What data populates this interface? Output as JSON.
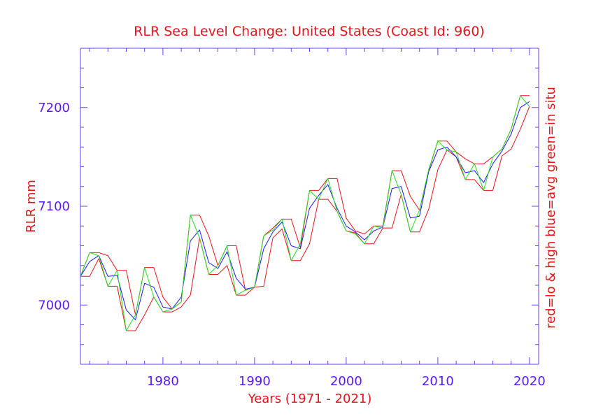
{
  "chart_data": {
    "type": "line",
    "title": "RLR Sea Level Change: United States (Coast Id: 960)",
    "xlabel": "Years (1971 - 2021)",
    "ylabel": "RLR mm",
    "ylabel_right": "red=lo & high  blue=avg  green=in situ",
    "xlim": [
      1971,
      2021
    ],
    "ylim": [
      6940,
      7260
    ],
    "xticks": [
      1980,
      1990,
      2000,
      2010,
      2020
    ],
    "xtick_labels": [
      "1980",
      "1990",
      "2000",
      "2010",
      "2020"
    ],
    "yticks": [
      7000,
      7100,
      7200
    ],
    "ytick_labels": [
      "7000",
      "7100",
      "7200"
    ],
    "x": [
      1971,
      1972,
      1973,
      1974,
      1975,
      1976,
      1977,
      1978,
      1979,
      1980,
      1981,
      1982,
      1983,
      1984,
      1985,
      1986,
      1987,
      1988,
      1989,
      1990,
      1991,
      1992,
      1993,
      1994,
      1995,
      1996,
      1997,
      1998,
      1999,
      2000,
      2001,
      2002,
      2003,
      2004,
      2005,
      2006,
      2007,
      2008,
      2009,
      2010,
      2011,
      2012,
      2013,
      2014,
      2015,
      2016,
      2017,
      2018,
      2019,
      2020
    ],
    "series": [
      {
        "name": "high",
        "color": "#e8141b",
        "values": [
          7029,
          7053,
          7053,
          7050,
          7035,
          7035,
          6990,
          7038,
          7038,
          7008,
          6996,
          7003,
          7091,
          7091,
          7070,
          7040,
          7060,
          7060,
          7015,
          7018,
          7070,
          7078,
          7087,
          7087,
          7058,
          7116,
          7116,
          7128,
          7128,
          7088,
          7075,
          7072,
          7080,
          7080,
          7136,
          7136,
          7110,
          7096,
          7136,
          7166,
          7166,
          7155,
          7148,
          7143,
          7143,
          7150,
          7158,
          7178,
          7212,
          7212
        ]
      },
      {
        "name": "low",
        "color": "#e8141b",
        "values": [
          7029,
          7029,
          7047,
          7019,
          7019,
          6974,
          6974,
          6990,
          7008,
          6993,
          6993,
          6998,
          7010,
          7068,
          7031,
          7031,
          7040,
          7010,
          7010,
          7018,
          7019,
          7068,
          7077,
          7045,
          7045,
          7062,
          7107,
          7107,
          7095,
          7075,
          7073,
          7062,
          7062,
          7078,
          7078,
          7112,
          7074,
          7074,
          7097,
          7137,
          7157,
          7150,
          7127,
          7127,
          7116,
          7116,
          7151,
          7158,
          7178,
          7201
        ]
      },
      {
        "name": "avg",
        "color": "#1a1aff",
        "values": [
          7029,
          7044,
          7050,
          7029,
          7030,
          6995,
          6985,
          7022,
          7018,
          6998,
          6996,
          7008,
          7065,
          7076,
          7043,
          7037,
          7054,
          7027,
          7016,
          7018,
          7057,
          7074,
          7084,
          7060,
          7057,
          7098,
          7111,
          7122,
          7098,
          7080,
          7074,
          7066,
          7075,
          7079,
          7118,
          7120,
          7088,
          7090,
          7135,
          7157,
          7160,
          7150,
          7134,
          7136,
          7124,
          7143,
          7156,
          7173,
          7200,
          7206
        ]
      },
      {
        "name": "in situ",
        "color": "#22dd22",
        "values": [
          7029,
          7053,
          7050,
          7019,
          7035,
          6974,
          6990,
          7038,
          7008,
          6993,
          6996,
          7003,
          7091,
          7068,
          7031,
          7040,
          7060,
          7010,
          7015,
          7018,
          7070,
          7076,
          7087,
          7045,
          7062,
          7116,
          7107,
          7128,
          7095,
          7075,
          7072,
          7062,
          7080,
          7078,
          7136,
          7112,
          7074,
          7096,
          7137,
          7166,
          7157,
          7155,
          7127,
          7143,
          7116,
          7150,
          7158,
          7178,
          7212,
          7201
        ]
      }
    ]
  }
}
